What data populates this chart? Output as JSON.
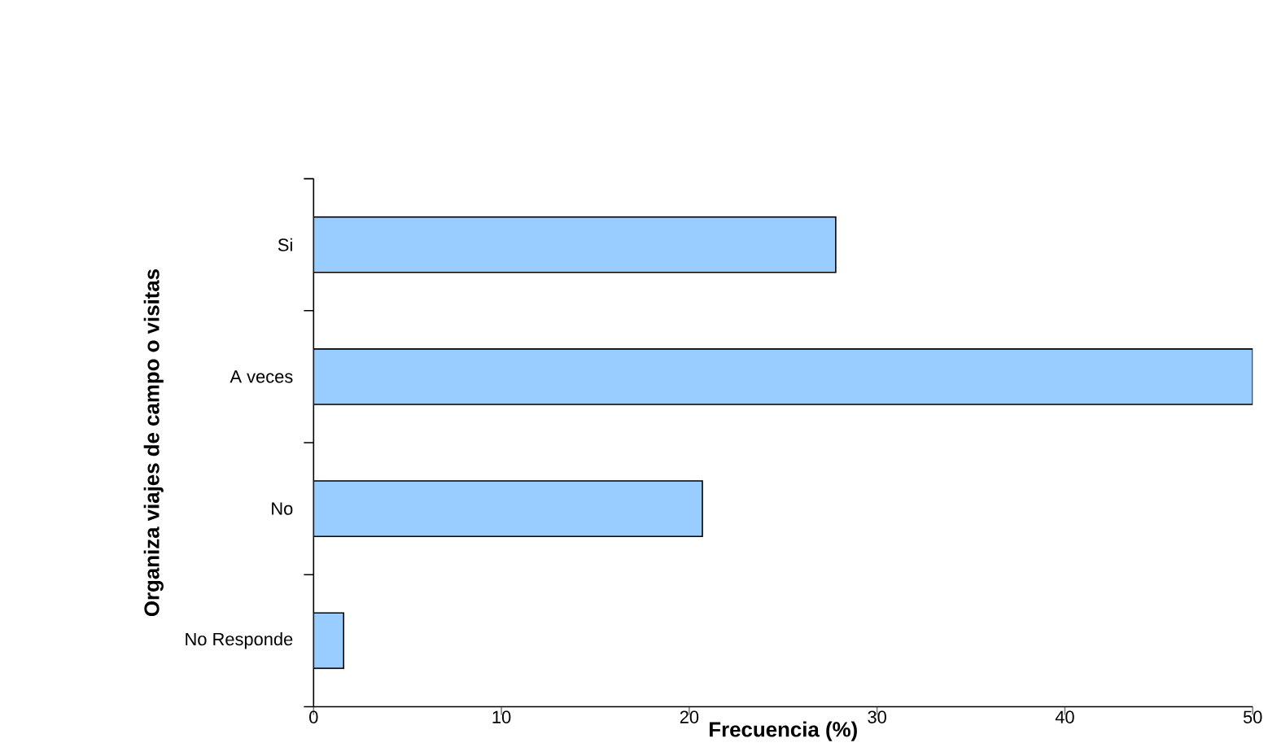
{
  "chart_data": {
    "type": "bar",
    "orientation": "horizontal",
    "xlabel": "Frecuencia (%)",
    "ylabel": "Organiza viajes de campo o visitas",
    "categories": [
      "Si",
      "A veces",
      "No",
      "No Responde"
    ],
    "values": [
      27.8,
      50,
      20.7,
      1.6
    ],
    "color": "#99ccff",
    "xlim": [
      0,
      50
    ],
    "xticks": [
      0,
      10,
      20,
      30,
      40,
      50
    ]
  }
}
